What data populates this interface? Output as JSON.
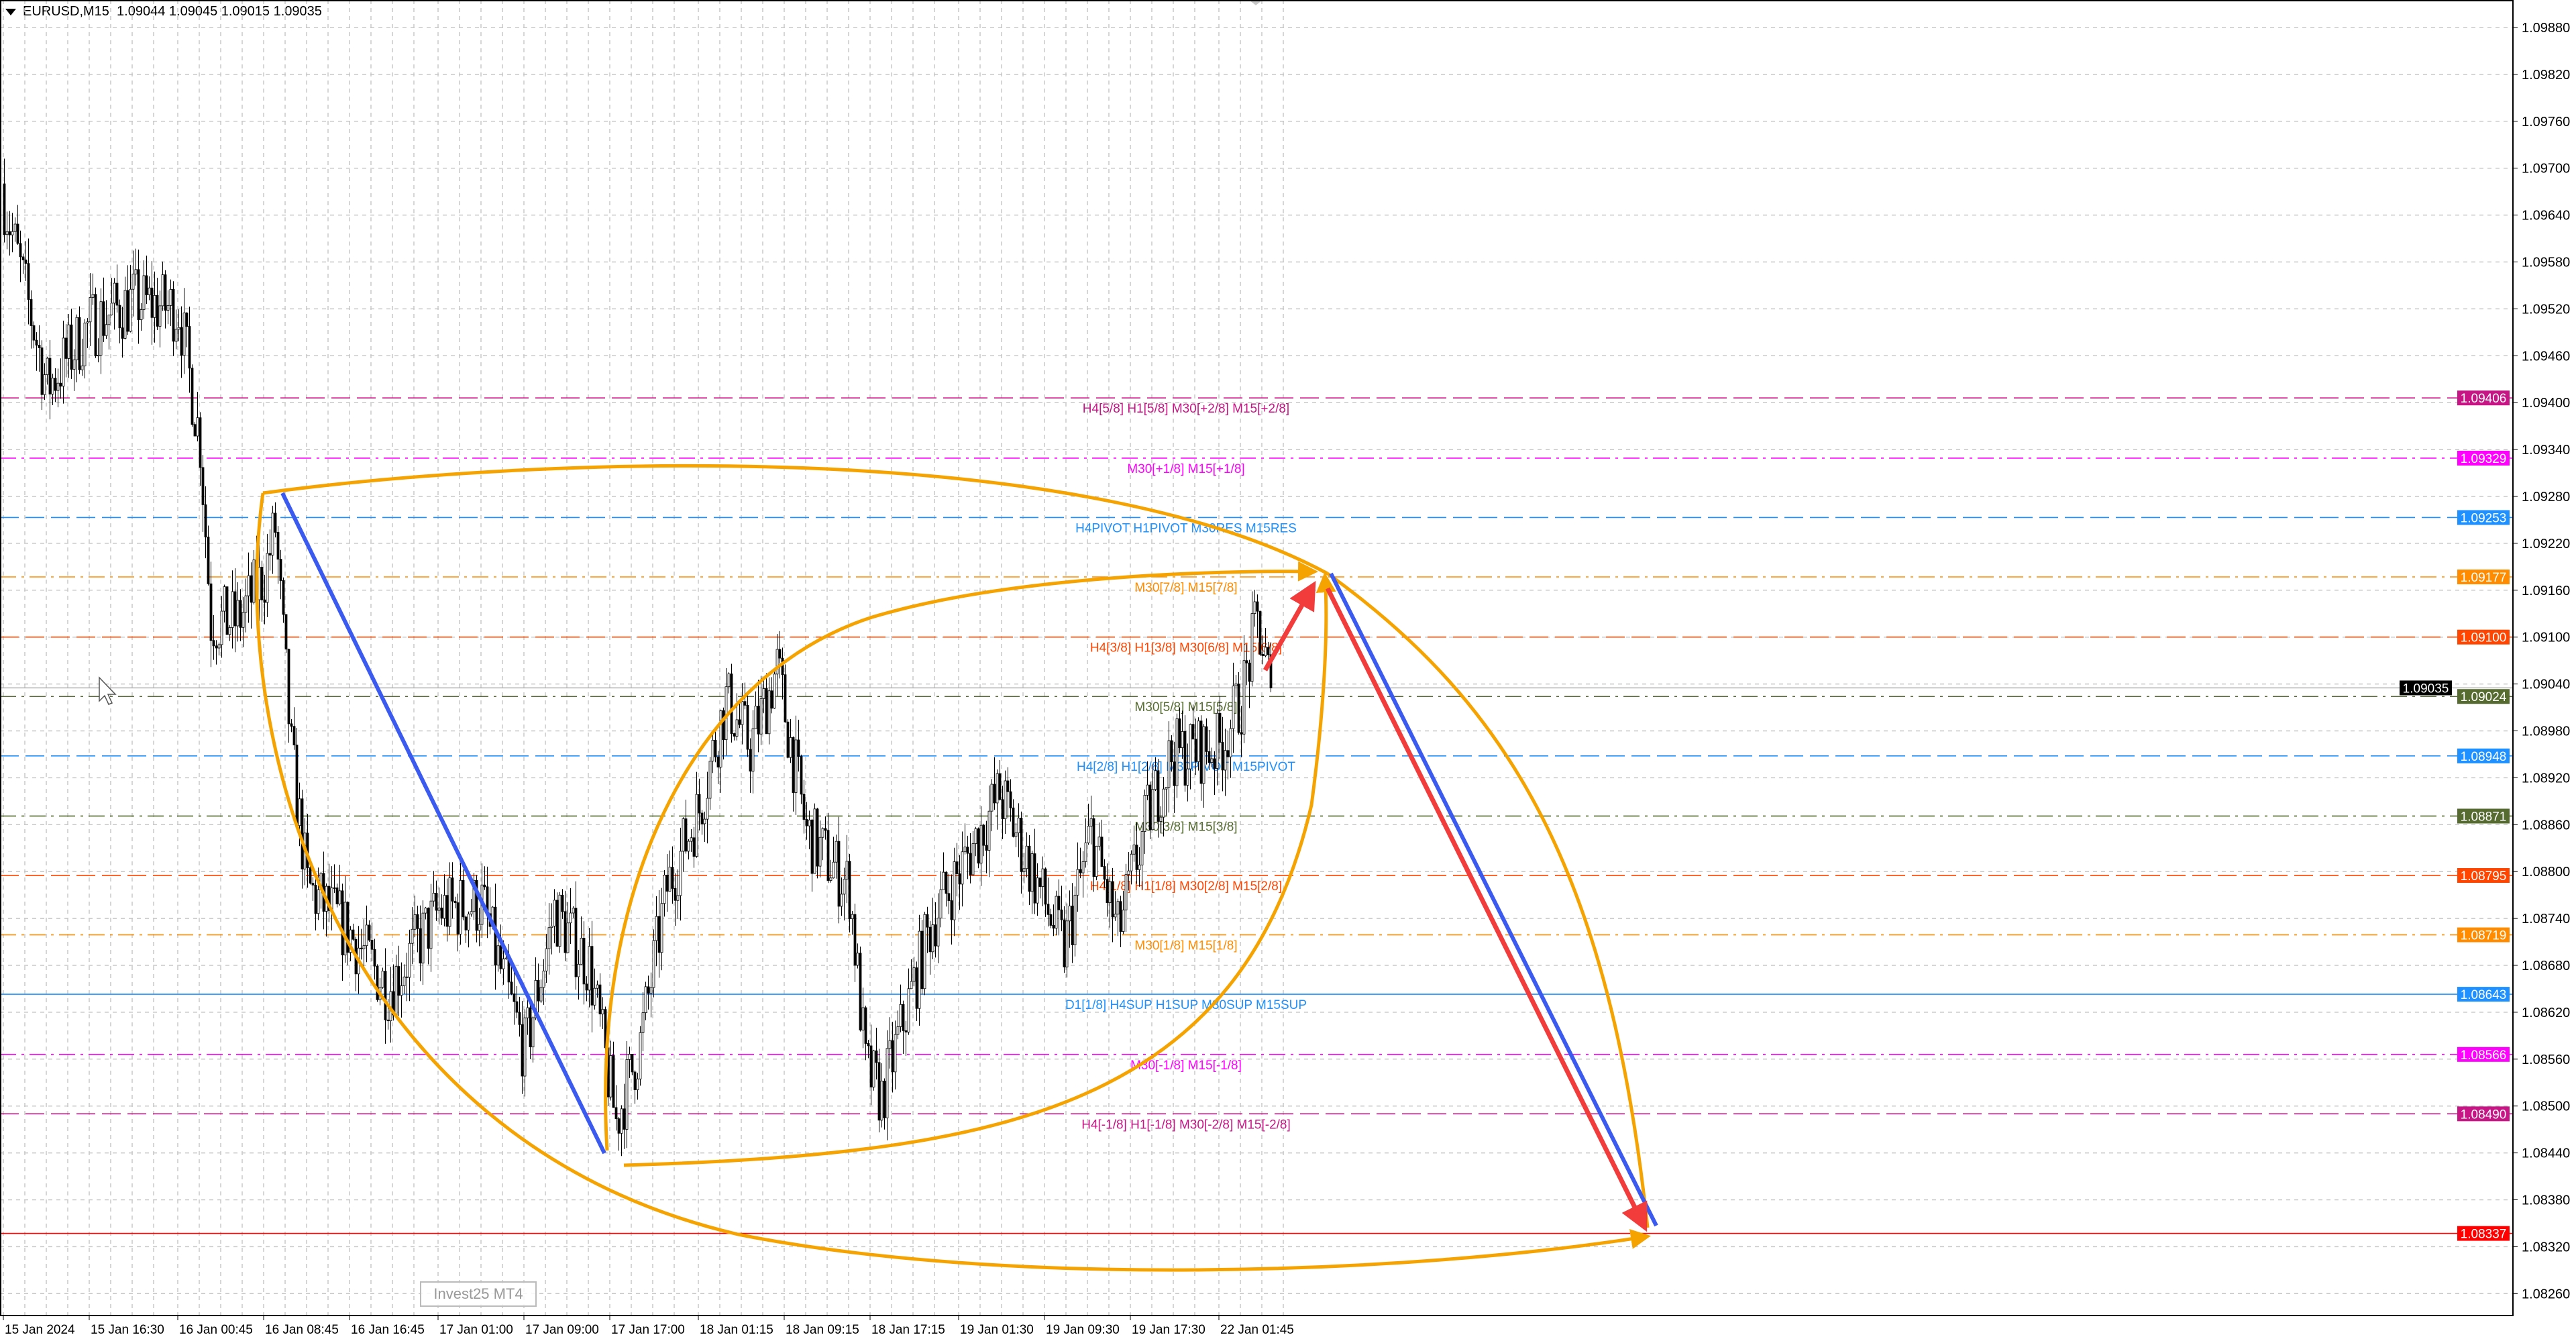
{
  "header": {
    "symbol": "EURUSD,M15",
    "ohlc": "1.09044 1.09045 1.09015 1.09035"
  },
  "overlay_text": "Invest25 MT4",
  "chart_data": {
    "type": "candlestick",
    "symbol": "EURUSD",
    "timeframe": "M15",
    "ylim": [
      1.0823,
      1.0991
    ],
    "y_ticks": [
      "1.09880",
      "1.09820",
      "1.09760",
      "1.09700",
      "1.09640",
      "1.09580",
      "1.09520",
      "1.09460",
      "1.09400",
      "1.09340",
      "1.09280",
      "1.09220",
      "1.09160",
      "1.09100",
      "1.09040",
      "1.08980",
      "1.08920",
      "1.08860",
      "1.08800",
      "1.08740",
      "1.08680",
      "1.08620",
      "1.08560",
      "1.08500",
      "1.08440",
      "1.08380",
      "1.08320",
      "1.08260"
    ],
    "x_ticks": [
      {
        "label": "15 Jan 2024",
        "time": "15 Jan 08:30"
      },
      {
        "label": "15 Jan 16:30",
        "time": "15 Jan 16:30"
      },
      {
        "label": "16 Jan 00:45",
        "time": "16 Jan 00:45"
      },
      {
        "label": "16 Jan 08:45",
        "time": "16 Jan 08:45"
      },
      {
        "label": "16 Jan 16:45",
        "time": "16 Jan 16:45"
      },
      {
        "label": "17 Jan 01:00",
        "time": "17 Jan 01:00"
      },
      {
        "label": "17 Jan 09:00",
        "time": "17 Jan 09:00"
      },
      {
        "label": "17 Jan 17:00",
        "time": "17 Jan 17:00"
      },
      {
        "label": "18 Jan 01:15",
        "time": "18 Jan 01:15"
      },
      {
        "label": "18 Jan 09:15",
        "time": "18 Jan 09:15"
      },
      {
        "label": "18 Jan 17:15",
        "time": "18 Jan 17:15"
      },
      {
        "label": "19 Jan 01:30",
        "time": "19 Jan 01:30"
      },
      {
        "label": "19 Jan 09:30",
        "time": "19 Jan 09:30"
      },
      {
        "label": "19 Jan 17:30",
        "time": "19 Jan 17:30"
      },
      {
        "label": "22 Jan 01:45",
        "time": "22 Jan 01:45"
      }
    ],
    "close_path": [
      [
        "15 Jan 08:30",
        1.0966
      ],
      [
        "15 Jan 12:30",
        1.0942
      ],
      [
        "15 Jan 16:30",
        1.095
      ],
      [
        "15 Jan 20:30",
        1.0953
      ],
      [
        "16 Jan 00:45",
        1.0952
      ],
      [
        "16 Jan 02:45",
        1.0935
      ],
      [
        "16 Jan 03:45",
        1.0912
      ],
      [
        "16 Jan 06:15",
        1.0912
      ],
      [
        "16 Jan 08:45",
        1.0918
      ],
      [
        "16 Jan 09:45",
        1.0924
      ],
      [
        "16 Jan 11:15",
        1.0895
      ],
      [
        "16 Jan 12:45",
        1.0878
      ],
      [
        "16 Jan 16:45",
        1.0872
      ],
      [
        "16 Jan 20:15",
        1.0865
      ],
      [
        "17 Jan 01:00",
        1.0875
      ],
      [
        "17 Jan 05:00",
        1.0876
      ],
      [
        "17 Jan 07:00",
        1.0866
      ],
      [
        "17 Jan 09:00",
        1.0857
      ],
      [
        "17 Jan 11:45",
        1.0875
      ],
      [
        "17 Jan 15:00",
        1.0868
      ],
      [
        "17 Jan 17:30",
        1.0848
      ],
      [
        "17 Jan 19:45",
        1.0858
      ],
      [
        "17 Jan 22:15",
        1.0878
      ],
      [
        "18 Jan 01:15",
        1.0888
      ],
      [
        "18 Jan 03:45",
        1.0902
      ],
      [
        "18 Jan 06:00",
        1.0896
      ],
      [
        "18 Jan 08:30",
        1.0906
      ],
      [
        "18 Jan 11:15",
        1.0885
      ],
      [
        "18 Jan 15:15",
        1.0878
      ],
      [
        "18 Jan 16:45",
        1.0855
      ],
      [
        "18 Jan 18:15",
        1.0851
      ],
      [
        "18 Jan 20:30",
        1.0862
      ],
      [
        "18 Jan 23:00",
        1.0874
      ],
      [
        "19 Jan 01:30",
        1.088
      ],
      [
        "19 Jan 05:15",
        1.089
      ],
      [
        "19 Jan 08:15",
        1.088
      ],
      [
        "19 Jan 11:15",
        1.087
      ],
      [
        "19 Jan 13:45",
        1.0885
      ],
      [
        "19 Jan 16:15",
        1.0872
      ],
      [
        "19 Jan 19:00",
        1.0887
      ],
      [
        "19 Jan 21:15",
        1.0895
      ],
      [
        "22 Jan 01:45",
        1.0896
      ],
      [
        "22 Jan 03:45",
        1.0902
      ],
      [
        "22 Jan 05:15",
        1.0912
      ],
      [
        "22 Jan 06:30",
        1.09035
      ]
    ],
    "current_price": {
      "value": 1.09035,
      "label": "1.09035",
      "color": "#000000"
    },
    "levels": [
      {
        "price": 1.09406,
        "label": "1.09406",
        "text": "H4[5/8] H1[5/8] M30[+2/8] M15[+2/8]",
        "color": "#c71585",
        "style": "dash"
      },
      {
        "price": 1.09329,
        "label": "1.09329",
        "text": "M30[+1/8] M15[+1/8]",
        "color": "#ff00ff",
        "style": "dashdot"
      },
      {
        "price": 1.09253,
        "label": "1.09253",
        "text": "H4PIVOT H1PIVOT M30RES M15RES",
        "color": "#1e90ff",
        "style": "dash"
      },
      {
        "price": 1.09177,
        "label": "1.09177",
        "text": "M30[7/8] M15[7/8]",
        "color": "#ff8c00",
        "style": "dashdot"
      },
      {
        "price": 1.091,
        "label": "1.09100",
        "text": "H4[3/8] H1[3/8] M30[6/8] M15[6/8]",
        "color": "#ff4500",
        "style": "dash"
      },
      {
        "price": 1.09024,
        "label": "1.09024",
        "text": "M30[5/8] M15[5/8]",
        "color": "#556b2f",
        "style": "dashdot"
      },
      {
        "price": 1.08948,
        "label": "1.08948",
        "text": "H4[2/8] H1[2/8] M30PIVOT M15PIVOT",
        "color": "#1e90ff",
        "style": "dash"
      },
      {
        "price": 1.08871,
        "label": "1.08871",
        "text": "M30[3/8] M15[3/8]",
        "color": "#556b2f",
        "style": "dashdot"
      },
      {
        "price": 1.08795,
        "label": "1.08795",
        "text": "H4[1/8] H1[1/8] M30[2/8] M15[2/8]",
        "color": "#ff4500",
        "style": "dash"
      },
      {
        "price": 1.08719,
        "label": "1.08719",
        "text": "M30[1/8] M15[1/8]",
        "color": "#ff8c00",
        "style": "dashdot"
      },
      {
        "price": 1.08643,
        "label": "1.08643",
        "text": "D1[1/8] H4SUP H1SUP M30SUP M15SUP",
        "color": "#1e90ff",
        "style": "solid"
      },
      {
        "price": 1.08566,
        "label": "1.08566",
        "text": "M30[-1/8] M15[-1/8]",
        "color": "#ff00ff",
        "style": "dashdot"
      },
      {
        "price": 1.0849,
        "label": "1.08490",
        "text": "H4[-1/8] H1[-1/8] M30[-2/8] M15[-2/8]",
        "color": "#c71585",
        "style": "dash"
      },
      {
        "price": 1.08337,
        "label": "1.08337",
        "text": "",
        "color": "#ff0000",
        "style": "solid"
      }
    ],
    "drawing_colors": {
      "trend_blue": "#3b5bf0",
      "arrow_red": "#f23c3c",
      "curve_orange": "#f5a300"
    }
  }
}
